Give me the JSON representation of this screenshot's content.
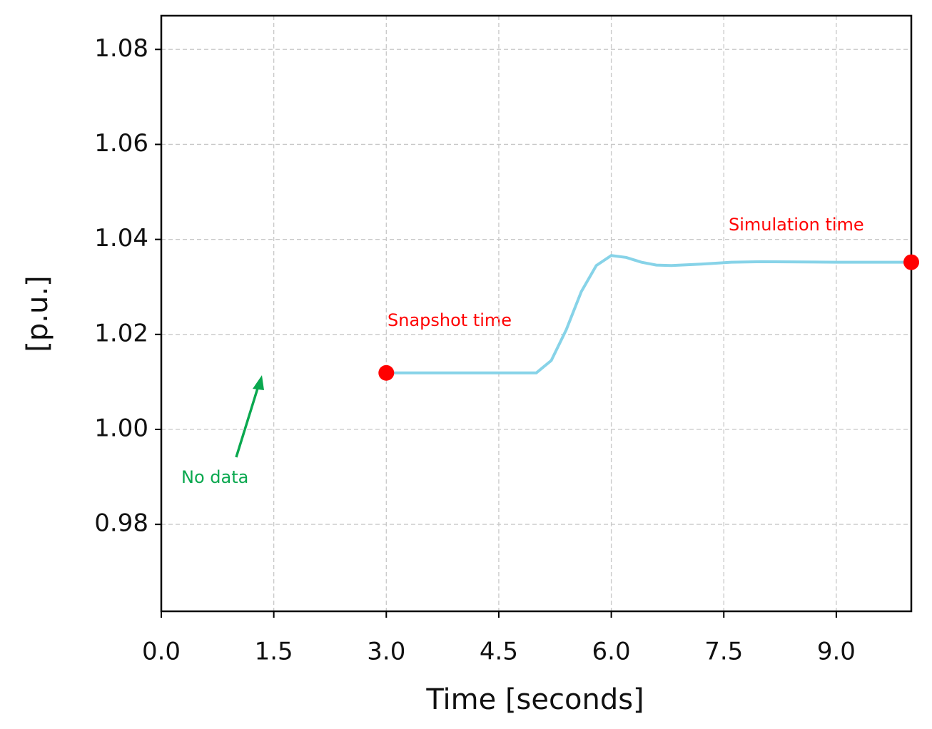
{
  "chart_data": {
    "type": "line",
    "xlabel": "Time [seconds]",
    "ylabel": "[p.u.]",
    "x": [
      3.0,
      4.0,
      5.0,
      5.2,
      5.4,
      5.6,
      5.8,
      6.0,
      6.2,
      6.4,
      6.6,
      6.8,
      7.2,
      7.6,
      8.0,
      9.0,
      10.0
    ],
    "values": [
      1.0119,
      1.0119,
      1.0119,
      1.0145,
      1.021,
      1.029,
      1.0345,
      1.0366,
      1.0362,
      1.0352,
      1.0346,
      1.0345,
      1.0348,
      1.0352,
      1.0353,
      1.0352,
      1.0352
    ],
    "color": "#87d3e8",
    "markers": {
      "x": [
        3.0,
        10.0
      ],
      "values": [
        1.0119,
        1.0352
      ],
      "color": "#ff0000"
    },
    "xlim": [
      0,
      10
    ],
    "ylim": [
      0.9617,
      1.0871
    ],
    "xticks": [
      {
        "value": 0,
        "label": "0.0"
      },
      1.5,
      {
        "value": 3,
        "label": "3.0"
      },
      4.5,
      {
        "value": 6,
        "label": "6.0"
      },
      7.5,
      {
        "value": 9,
        "label": "9.0"
      }
    ],
    "yticks": [
      0.98,
      {
        "value": 1,
        "label": "1.00"
      },
      1.02,
      1.04,
      1.06,
      1.08
    ],
    "grid": true,
    "annotations": [
      "Snapshot time",
      "Simulation time",
      "No data"
    ]
  }
}
